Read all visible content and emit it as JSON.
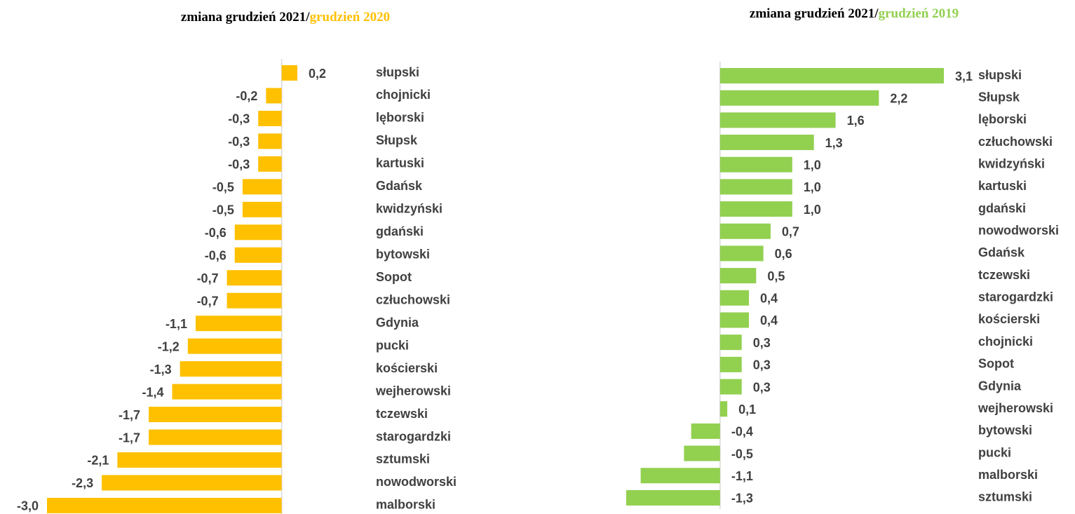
{
  "chart_data": [
    {
      "type": "bar",
      "orientation": "horizontal",
      "title_parts": [
        {
          "text": "zmiana grudzień 2021/",
          "color": "#000000"
        },
        {
          "text": "grudzień 2020",
          "color": "#ffc000"
        }
      ],
      "categories": [
        "słupski",
        "chojnicki",
        "lęborski",
        "Słupsk",
        "kartuski",
        "Gdańsk",
        "kwidzyński",
        "gdański",
        "bytowski",
        "Sopot",
        "człuchowski",
        "Gdynia",
        "pucki",
        "kościerski",
        "wejherowski",
        "tczewski",
        "starogardzki",
        "sztumski",
        "nowodworski",
        "malborski"
      ],
      "values": [
        0.2,
        -0.2,
        -0.3,
        -0.3,
        -0.3,
        -0.5,
        -0.5,
        -0.6,
        -0.6,
        -0.7,
        -0.7,
        -1.1,
        -1.2,
        -1.3,
        -1.4,
        -1.7,
        -1.7,
        -2.1,
        -2.3,
        -3.0
      ],
      "value_labels": [
        "0,2",
        "-0,2",
        "-0,3",
        "-0,3",
        "-0,3",
        "-0,5",
        "-0,5",
        "-0,6",
        "-0,6",
        "-0,7",
        "-0,7",
        "-1,1",
        "-1,2",
        "-1,3",
        "-1,4",
        "-1,7",
        "-1,7",
        "-2,1",
        "-2,3",
        "-3,0"
      ],
      "color": "#ffc000",
      "xlim": [
        -3.0,
        0.2
      ]
    },
    {
      "type": "bar",
      "orientation": "horizontal",
      "title_parts": [
        {
          "text": "zmiana grudzień 2021/",
          "color": "#000000"
        },
        {
          "text": "grudzień 2019",
          "color": "#92d050"
        }
      ],
      "categories": [
        "słupski",
        "Słupsk",
        "lęborski",
        "człuchowski",
        "kwidzyński",
        "kartuski",
        "gdański",
        "nowodworski",
        "Gdańsk",
        "tczewski",
        "starogardzki",
        "kościerski",
        "chojnicki",
        "Sopot",
        "Gdynia",
        "wejherowski",
        "bytowski",
        "pucki",
        "malborski",
        "sztumski"
      ],
      "values": [
        3.1,
        2.2,
        1.6,
        1.3,
        1.0,
        1.0,
        1.0,
        0.7,
        0.6,
        0.5,
        0.4,
        0.4,
        0.3,
        0.3,
        0.3,
        0.1,
        -0.4,
        -0.5,
        -1.1,
        -1.3
      ],
      "value_labels": [
        "3,1",
        "2,2",
        "1,6",
        "1,3",
        "1,0",
        "1,0",
        "1,0",
        "0,7",
        "0,6",
        "0,5",
        "0,4",
        "0,4",
        "0,3",
        "0,3",
        "0,3",
        "0,1",
        "-0,4",
        "-0,5",
        "-1,1",
        "-1,3"
      ],
      "color": "#92d050",
      "xlim": [
        -1.3,
        3.1
      ]
    }
  ]
}
